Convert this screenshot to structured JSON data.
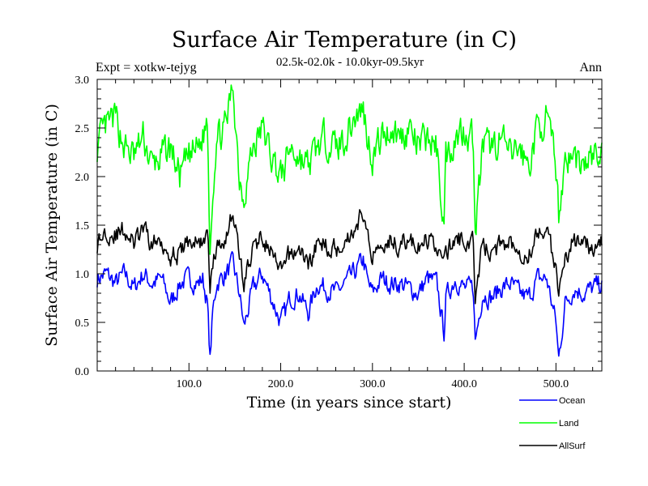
{
  "chart_data": {
    "type": "line",
    "title": "Surface Air Temperature (in C)",
    "subtitle": "02.5k-02.0k - 10.0kyr-09.5kyr",
    "left_note": "Expt = xotkw-tejyg",
    "right_note": "Ann",
    "xlabel": "Time (in years since start)",
    "ylabel": "Surface Air Temperature (in C)",
    "xlim": [
      0,
      550
    ],
    "ylim": [
      0.0,
      3.0
    ],
    "x_ticks": [
      100,
      200,
      300,
      400,
      500
    ],
    "x_tick_labels": [
      "100.0",
      "200.0",
      "300.0",
      "400.0",
      "500.0"
    ],
    "y_ticks": [
      0.0,
      0.5,
      1.0,
      1.5,
      2.0,
      2.5,
      3.0
    ],
    "y_tick_labels": [
      "0.0",
      "0.5",
      "1.0",
      "1.5",
      "2.0",
      "2.5",
      "3.0"
    ],
    "series": [
      {
        "name": "Ocean",
        "color": "#0000ff",
        "x": [
          0,
          10,
          20,
          30,
          40,
          50,
          60,
          70,
          80,
          90,
          100,
          110,
          115,
          120,
          123,
          126,
          130,
          140,
          148,
          155,
          160,
          165,
          170,
          180,
          190,
          200,
          205,
          210,
          220,
          230,
          240,
          250,
          260,
          270,
          280,
          290,
          295,
          300,
          310,
          320,
          330,
          340,
          350,
          360,
          370,
          378,
          380,
          390,
          400,
          410,
          412,
          420,
          430,
          440,
          450,
          460,
          470,
          480,
          490,
          500,
          503,
          510,
          520,
          530,
          540,
          550
        ],
        "values": [
          0.95,
          1.0,
          0.9,
          1.0,
          0.85,
          1.0,
          0.9,
          0.95,
          0.7,
          0.9,
          0.95,
          0.9,
          0.95,
          0.7,
          0.12,
          0.6,
          0.9,
          1.0,
          1.1,
          0.8,
          0.45,
          0.65,
          0.85,
          1.0,
          0.75,
          0.5,
          0.6,
          0.75,
          0.8,
          0.6,
          0.9,
          0.85,
          0.8,
          0.9,
          1.0,
          1.15,
          0.9,
          0.8,
          0.95,
          0.9,
          0.9,
          0.85,
          0.8,
          0.95,
          0.9,
          0.4,
          0.75,
          0.95,
          0.85,
          0.85,
          0.3,
          0.8,
          0.75,
          0.85,
          0.9,
          0.8,
          0.75,
          0.95,
          0.95,
          0.5,
          0.12,
          0.7,
          0.85,
          0.8,
          0.85,
          0.9
        ]
      },
      {
        "name": "Land",
        "color": "#00ff00",
        "x": [
          0,
          10,
          20,
          30,
          40,
          50,
          60,
          70,
          80,
          90,
          100,
          110,
          115,
          120,
          123,
          126,
          130,
          140,
          148,
          155,
          160,
          165,
          170,
          180,
          190,
          200,
          205,
          210,
          220,
          230,
          240,
          250,
          260,
          270,
          280,
          290,
          295,
          300,
          310,
          320,
          330,
          340,
          350,
          360,
          370,
          378,
          380,
          390,
          400,
          410,
          412,
          420,
          430,
          440,
          450,
          460,
          470,
          480,
          490,
          500,
          503,
          510,
          520,
          530,
          540,
          550
        ],
        "values": [
          2.3,
          2.5,
          2.6,
          2.3,
          2.2,
          2.4,
          2.1,
          2.2,
          2.3,
          2.0,
          2.2,
          2.3,
          2.4,
          2.6,
          1.3,
          1.9,
          2.4,
          2.5,
          2.95,
          2.0,
          1.8,
          2.1,
          2.3,
          2.5,
          2.2,
          2.0,
          2.1,
          2.3,
          2.2,
          2.1,
          2.3,
          2.4,
          2.3,
          2.4,
          2.6,
          2.7,
          2.4,
          2.2,
          2.4,
          2.5,
          2.4,
          2.5,
          2.3,
          2.4,
          2.3,
          1.5,
          2.2,
          2.4,
          2.5,
          2.4,
          1.4,
          2.3,
          2.3,
          2.4,
          2.2,
          2.3,
          2.1,
          2.5,
          2.6,
          2.1,
          1.6,
          2.2,
          2.2,
          2.1,
          2.2,
          2.2
        ]
      },
      {
        "name": "AllSurf",
        "color": "#000000",
        "x": [
          0,
          10,
          20,
          30,
          40,
          50,
          60,
          70,
          80,
          90,
          100,
          110,
          115,
          120,
          123,
          126,
          130,
          140,
          148,
          155,
          160,
          165,
          170,
          180,
          190,
          200,
          205,
          210,
          220,
          230,
          240,
          250,
          260,
          270,
          280,
          290,
          295,
          300,
          310,
          320,
          330,
          340,
          350,
          360,
          370,
          378,
          380,
          390,
          400,
          410,
          412,
          420,
          430,
          440,
          450,
          460,
          470,
          480,
          490,
          500,
          503,
          510,
          520,
          530,
          540,
          550
        ],
        "values": [
          1.3,
          1.45,
          1.4,
          1.45,
          1.3,
          1.45,
          1.3,
          1.35,
          1.2,
          1.2,
          1.35,
          1.3,
          1.35,
          1.4,
          0.9,
          1.1,
          1.25,
          1.4,
          1.65,
          1.2,
          0.9,
          1.1,
          1.25,
          1.4,
          1.2,
          1.0,
          1.1,
          1.2,
          1.25,
          1.1,
          1.3,
          1.3,
          1.25,
          1.35,
          1.45,
          1.65,
          1.35,
          1.2,
          1.35,
          1.35,
          1.3,
          1.35,
          1.25,
          1.35,
          1.3,
          1.1,
          1.2,
          1.35,
          1.35,
          1.3,
          0.8,
          1.3,
          1.2,
          1.3,
          1.35,
          1.25,
          1.2,
          1.4,
          1.5,
          1.0,
          0.7,
          1.2,
          1.35,
          1.25,
          1.3,
          1.3
        ]
      }
    ],
    "legend": [
      "Ocean",
      "Land",
      "AllSurf"
    ]
  }
}
